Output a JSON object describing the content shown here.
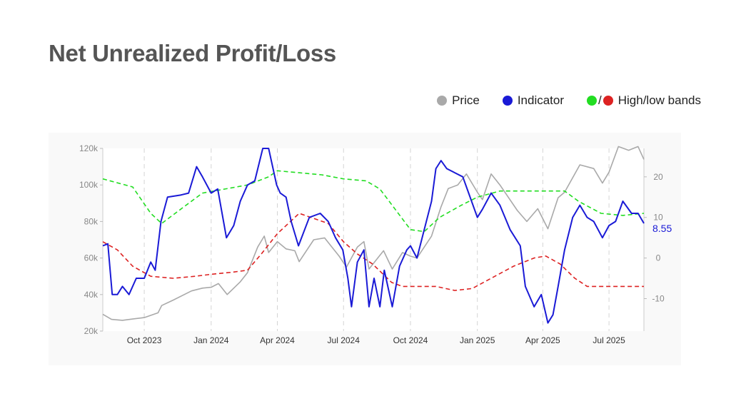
{
  "title": "Net Unrealized Profit/Loss",
  "legend": {
    "price_label": "Price",
    "indicator_label": "Indicator",
    "bands_slash": "/",
    "bands_label": "High/low bands"
  },
  "colors": {
    "price": "#a9a9a9",
    "indicator": "#1a1ad6",
    "high_band": "#22dd22",
    "low_band": "#dd2222"
  },
  "chart_data": {
    "type": "line",
    "x_ticks": [
      "Oct 2023",
      "Jan 2024",
      "Apr 2024",
      "Jul 2024",
      "Oct 2024",
      "Jan 2025",
      "Apr 2025",
      "Jul 2025"
    ],
    "x_tick_dates": [
      "2023-10-01",
      "2024-01-01",
      "2024-04-01",
      "2024-07-01",
      "2024-10-01",
      "2025-01-01",
      "2025-04-01",
      "2025-07-01"
    ],
    "x_range": [
      "2023-08-05",
      "2025-08-18"
    ],
    "y_left_ticks": [
      "20k",
      "40k",
      "60k",
      "80k",
      "100k",
      "120k"
    ],
    "y_left_range": [
      20000,
      120000
    ],
    "y_right_ticks": [
      "-10",
      "0",
      "10",
      "20"
    ],
    "y_right_range": [
      -18,
      27
    ],
    "last_value_label": "8.55",
    "grid": "vertical dashed at x ticks",
    "series": [
      {
        "name": "Price",
        "axis": "left",
        "points": [
          [
            "2023-08-05",
            29200
          ],
          [
            "2023-08-17",
            26400
          ],
          [
            "2023-09-01",
            25900
          ],
          [
            "2023-09-15",
            26600
          ],
          [
            "2023-10-01",
            27400
          ],
          [
            "2023-10-20",
            30000
          ],
          [
            "2023-10-25",
            34000
          ],
          [
            "2023-11-10",
            37000
          ],
          [
            "2023-12-05",
            42000
          ],
          [
            "2023-12-20",
            43500
          ],
          [
            "2024-01-01",
            44000
          ],
          [
            "2024-01-11",
            46000
          ],
          [
            "2024-01-23",
            40000
          ],
          [
            "2024-02-10",
            47000
          ],
          [
            "2024-02-20",
            52000
          ],
          [
            "2024-03-05",
            66000
          ],
          [
            "2024-03-14",
            72000
          ],
          [
            "2024-03-20",
            63000
          ],
          [
            "2024-04-01",
            69000
          ],
          [
            "2024-04-13",
            65000
          ],
          [
            "2024-04-25",
            64000
          ],
          [
            "2024-05-01",
            58000
          ],
          [
            "2024-05-21",
            70000
          ],
          [
            "2024-06-05",
            71000
          ],
          [
            "2024-06-15",
            66000
          ],
          [
            "2024-06-25",
            61000
          ],
          [
            "2024-07-05",
            55000
          ],
          [
            "2024-07-20",
            66000
          ],
          [
            "2024-07-29",
            69000
          ],
          [
            "2024-08-05",
            54000
          ],
          [
            "2024-08-25",
            64000
          ],
          [
            "2024-09-06",
            54000
          ],
          [
            "2024-09-20",
            63000
          ],
          [
            "2024-10-01",
            61000
          ],
          [
            "2024-10-10",
            60000
          ],
          [
            "2024-10-30",
            72000
          ],
          [
            "2024-11-12",
            88000
          ],
          [
            "2024-11-22",
            98000
          ],
          [
            "2024-12-05",
            100000
          ],
          [
            "2024-12-17",
            106000
          ],
          [
            "2025-01-01",
            96000
          ],
          [
            "2025-01-08",
            92000
          ],
          [
            "2025-01-20",
            106000
          ],
          [
            "2025-02-01",
            100000
          ],
          [
            "2025-02-25",
            86000
          ],
          [
            "2025-03-10",
            80000
          ],
          [
            "2025-03-25",
            87000
          ],
          [
            "2025-04-08",
            76000
          ],
          [
            "2025-04-22",
            93000
          ],
          [
            "2025-05-01",
            96000
          ],
          [
            "2025-05-22",
            111000
          ],
          [
            "2025-06-10",
            109000
          ],
          [
            "2025-06-22",
            101000
          ],
          [
            "2025-07-01",
            107000
          ],
          [
            "2025-07-14",
            121000
          ],
          [
            "2025-07-28",
            119000
          ],
          [
            "2025-08-10",
            121000
          ],
          [
            "2025-08-18",
            114000
          ]
        ]
      },
      {
        "name": "Indicator",
        "axis": "right",
        "points": [
          [
            "2023-08-05",
            3
          ],
          [
            "2023-08-12",
            3.5
          ],
          [
            "2023-08-18",
            -9
          ],
          [
            "2023-08-25",
            -9
          ],
          [
            "2023-09-01",
            -7
          ],
          [
            "2023-09-10",
            -9
          ],
          [
            "2023-09-20",
            -5
          ],
          [
            "2023-10-01",
            -5
          ],
          [
            "2023-10-10",
            -1
          ],
          [
            "2023-10-16",
            -3
          ],
          [
            "2023-10-24",
            9
          ],
          [
            "2023-11-02",
            15
          ],
          [
            "2023-11-20",
            15.5
          ],
          [
            "2023-12-01",
            16
          ],
          [
            "2023-12-12",
            22.5
          ],
          [
            "2023-12-20",
            20
          ],
          [
            "2024-01-01",
            16
          ],
          [
            "2024-01-10",
            17
          ],
          [
            "2024-01-22",
            5
          ],
          [
            "2024-02-01",
            8
          ],
          [
            "2024-02-10",
            14
          ],
          [
            "2024-02-20",
            18
          ],
          [
            "2024-03-01",
            19
          ],
          [
            "2024-03-12",
            27
          ],
          [
            "2024-03-20",
            27
          ],
          [
            "2024-03-31",
            18
          ],
          [
            "2024-04-05",
            16
          ],
          [
            "2024-04-13",
            15
          ],
          [
            "2024-04-20",
            9
          ],
          [
            "2024-04-30",
            3
          ],
          [
            "2024-05-15",
            10
          ],
          [
            "2024-05-30",
            11
          ],
          [
            "2024-06-10",
            9
          ],
          [
            "2024-06-20",
            5
          ],
          [
            "2024-06-30",
            2
          ],
          [
            "2024-07-07",
            -5
          ],
          [
            "2024-07-12",
            -12
          ],
          [
            "2024-07-20",
            -1
          ],
          [
            "2024-07-29",
            2
          ],
          [
            "2024-08-05",
            -12
          ],
          [
            "2024-08-12",
            -5
          ],
          [
            "2024-08-20",
            -12
          ],
          [
            "2024-08-26",
            -3
          ],
          [
            "2024-09-06",
            -12
          ],
          [
            "2024-09-16",
            -2
          ],
          [
            "2024-09-26",
            2
          ],
          [
            "2024-10-01",
            3
          ],
          [
            "2024-10-10",
            0
          ],
          [
            "2024-10-20",
            7
          ],
          [
            "2024-10-30",
            14
          ],
          [
            "2024-11-05",
            22
          ],
          [
            "2024-11-12",
            24
          ],
          [
            "2024-11-20",
            22
          ],
          [
            "2024-12-01",
            21
          ],
          [
            "2024-12-12",
            20
          ],
          [
            "2024-12-20",
            16
          ],
          [
            "2025-01-01",
            10
          ],
          [
            "2025-01-08",
            12
          ],
          [
            "2025-01-20",
            16
          ],
          [
            "2025-02-01",
            13
          ],
          [
            "2025-02-15",
            7
          ],
          [
            "2025-03-01",
            3
          ],
          [
            "2025-03-08",
            -7
          ],
          [
            "2025-03-20",
            -12
          ],
          [
            "2025-03-30",
            -9
          ],
          [
            "2025-04-08",
            -16
          ],
          [
            "2025-04-15",
            -14
          ],
          [
            "2025-04-22",
            -7
          ],
          [
            "2025-05-01",
            2
          ],
          [
            "2025-05-12",
            10
          ],
          [
            "2025-05-22",
            13
          ],
          [
            "2025-06-01",
            10
          ],
          [
            "2025-06-10",
            9
          ],
          [
            "2025-06-22",
            5
          ],
          [
            "2025-07-01",
            8
          ],
          [
            "2025-07-10",
            9
          ],
          [
            "2025-07-20",
            14
          ],
          [
            "2025-08-01",
            11
          ],
          [
            "2025-08-10",
            11
          ],
          [
            "2025-08-18",
            8.55
          ]
        ]
      },
      {
        "name": "High band",
        "axis": "right",
        "style": "dashed",
        "points": [
          [
            "2023-08-05",
            19.5
          ],
          [
            "2023-09-15",
            17.5
          ],
          [
            "2023-10-10",
            11
          ],
          [
            "2023-10-25",
            8.5
          ],
          [
            "2023-11-20",
            12
          ],
          [
            "2023-12-20",
            16
          ],
          [
            "2024-01-20",
            17
          ],
          [
            "2024-02-20",
            18
          ],
          [
            "2024-03-20",
            20
          ],
          [
            "2024-04-01",
            21.5
          ],
          [
            "2024-05-01",
            21
          ],
          [
            "2024-06-01",
            20.5
          ],
          [
            "2024-07-01",
            19.5
          ],
          [
            "2024-08-01",
            19
          ],
          [
            "2024-08-20",
            17
          ],
          [
            "2024-09-10",
            12
          ],
          [
            "2024-10-01",
            7
          ],
          [
            "2024-10-20",
            6.5
          ],
          [
            "2024-11-10",
            10
          ],
          [
            "2024-12-10",
            13
          ],
          [
            "2025-01-01",
            15
          ],
          [
            "2025-02-01",
            16.5
          ],
          [
            "2025-03-01",
            16.5
          ],
          [
            "2025-04-01",
            16.5
          ],
          [
            "2025-05-01",
            16.5
          ],
          [
            "2025-05-20",
            14
          ],
          [
            "2025-06-20",
            11
          ],
          [
            "2025-07-20",
            10.5
          ],
          [
            "2025-08-18",
            11
          ]
        ]
      },
      {
        "name": "Low band",
        "axis": "right",
        "style": "dashed",
        "points": [
          [
            "2023-08-05",
            4
          ],
          [
            "2023-08-25",
            2
          ],
          [
            "2023-09-15",
            -2
          ],
          [
            "2023-10-10",
            -4.5
          ],
          [
            "2023-11-10",
            -5
          ],
          [
            "2023-12-10",
            -4.5
          ],
          [
            "2024-01-01",
            -4
          ],
          [
            "2024-01-30",
            -3.5
          ],
          [
            "2024-02-20",
            -3
          ],
          [
            "2024-03-10",
            1
          ],
          [
            "2024-04-01",
            6
          ],
          [
            "2024-05-01",
            11
          ],
          [
            "2024-06-10",
            8.5
          ],
          [
            "2024-07-01",
            4
          ],
          [
            "2024-07-20",
            1
          ],
          [
            "2024-08-10",
            -1.5
          ],
          [
            "2024-09-05",
            -6
          ],
          [
            "2024-09-20",
            -7
          ],
          [
            "2024-11-05",
            -7
          ],
          [
            "2024-12-01",
            -8
          ],
          [
            "2024-12-25",
            -7.5
          ],
          [
            "2025-01-20",
            -5
          ],
          [
            "2025-02-20",
            -2
          ],
          [
            "2025-03-20",
            0
          ],
          [
            "2025-04-05",
            0.5
          ],
          [
            "2025-04-25",
            -1.5
          ],
          [
            "2025-05-15",
            -5
          ],
          [
            "2025-06-01",
            -7
          ],
          [
            "2025-07-01",
            -7
          ],
          [
            "2025-08-18",
            -7
          ]
        ]
      }
    ]
  }
}
